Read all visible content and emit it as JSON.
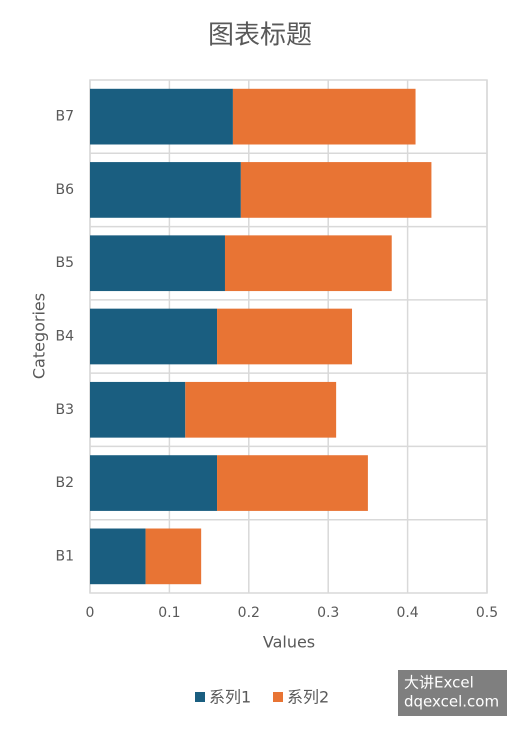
{
  "chart_data": {
    "type": "stacked-bar-horizontal",
    "title": "图表标题",
    "x_label": "Values",
    "y_label": "Categories",
    "categories": [
      "B1",
      "B2",
      "B3",
      "B4",
      "B5",
      "B6",
      "B7"
    ],
    "series": [
      {
        "name": "系列1",
        "color": "#1a5e80",
        "values": [
          0.07,
          0.16,
          0.12,
          0.16,
          0.17,
          0.19,
          0.18
        ]
      },
      {
        "name": "系列2",
        "color": "#e87434",
        "values": [
          0.07,
          0.19,
          0.19,
          0.17,
          0.21,
          0.24,
          0.23
        ]
      }
    ],
    "xlim": [
      0,
      0.5
    ],
    "xticks": [
      0,
      0.1,
      0.2,
      0.3,
      0.4,
      0.5
    ],
    "grid": true,
    "legend": "bottom"
  },
  "watermark": {
    "line1": "大讲Excel",
    "line2": "dqexcel.com"
  }
}
